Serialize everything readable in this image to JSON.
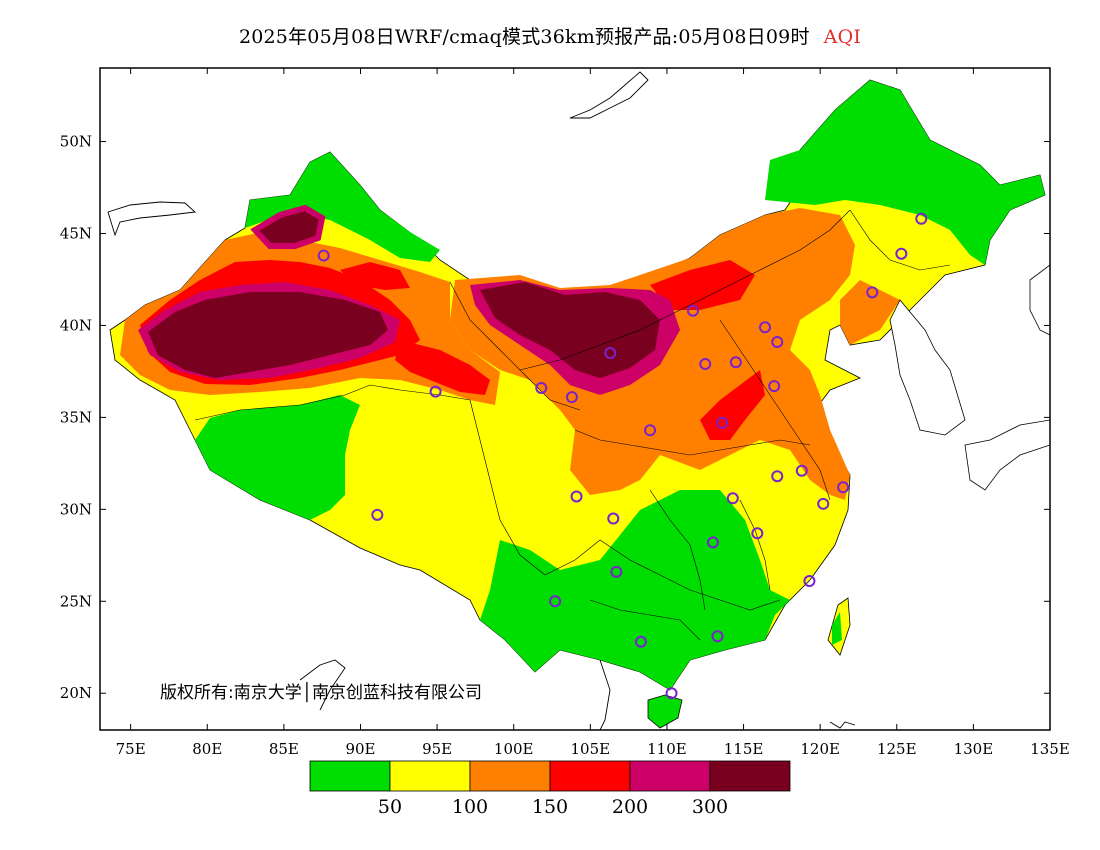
{
  "title": {
    "text": "2025年05月08日WRF/cmaq模式36km预报产品:05月08日09时",
    "variable": "AQI",
    "variable_color": "#e03030"
  },
  "copyright": "版权所有:南京大学│南京创蓝科技有限公司",
  "axes": {
    "x_ticks": [
      "75E",
      "80E",
      "85E",
      "90E",
      "95E",
      "100E",
      "105E",
      "110E",
      "115E",
      "120E",
      "125E",
      "130E",
      "135E"
    ],
    "y_ticks": [
      "50N",
      "45N",
      "40N",
      "35N",
      "30N",
      "25N",
      "20N"
    ]
  },
  "legend": {
    "colors": [
      "#00dd00",
      "#ffff00",
      "#ff8000",
      "#ff0000",
      "#cc0066",
      "#7a0020"
    ],
    "labels": [
      "50",
      "100",
      "150",
      "200",
      "300"
    ]
  },
  "map": {
    "extent": {
      "lon": [
        73,
        135
      ],
      "lat": [
        18,
        54
      ]
    },
    "stations": [
      {
        "lon": 87.6,
        "lat": 43.8
      },
      {
        "lon": 91.1,
        "lat": 29.7
      },
      {
        "lon": 94.9,
        "lat": 36.4
      },
      {
        "lon": 101.8,
        "lat": 36.6
      },
      {
        "lon": 103.8,
        "lat": 36.1
      },
      {
        "lon": 106.3,
        "lat": 38.5
      },
      {
        "lon": 111.7,
        "lat": 40.8
      },
      {
        "lon": 112.5,
        "lat": 37.9
      },
      {
        "lon": 114.5,
        "lat": 38.0
      },
      {
        "lon": 116.4,
        "lat": 39.9
      },
      {
        "lon": 117.2,
        "lat": 39.1
      },
      {
        "lon": 117.0,
        "lat": 36.7
      },
      {
        "lon": 113.6,
        "lat": 34.7
      },
      {
        "lon": 108.9,
        "lat": 34.3
      },
      {
        "lon": 104.1,
        "lat": 30.7
      },
      {
        "lon": 106.5,
        "lat": 29.5
      },
      {
        "lon": 114.3,
        "lat": 30.6
      },
      {
        "lon": 117.2,
        "lat": 31.8
      },
      {
        "lon": 118.8,
        "lat": 32.1
      },
      {
        "lon": 121.5,
        "lat": 31.2
      },
      {
        "lon": 120.2,
        "lat": 30.3
      },
      {
        "lon": 115.9,
        "lat": 28.7
      },
      {
        "lon": 113.0,
        "lat": 28.2
      },
      {
        "lon": 119.3,
        "lat": 26.1
      },
      {
        "lon": 106.7,
        "lat": 26.6
      },
      {
        "lon": 102.7,
        "lat": 25.0
      },
      {
        "lon": 108.3,
        "lat": 22.8
      },
      {
        "lon": 113.3,
        "lat": 23.1
      },
      {
        "lon": 110.3,
        "lat": 20.0
      },
      {
        "lon": 123.4,
        "lat": 41.8
      },
      {
        "lon": 125.3,
        "lat": 43.9
      },
      {
        "lon": 126.6,
        "lat": 45.8
      }
    ]
  }
}
